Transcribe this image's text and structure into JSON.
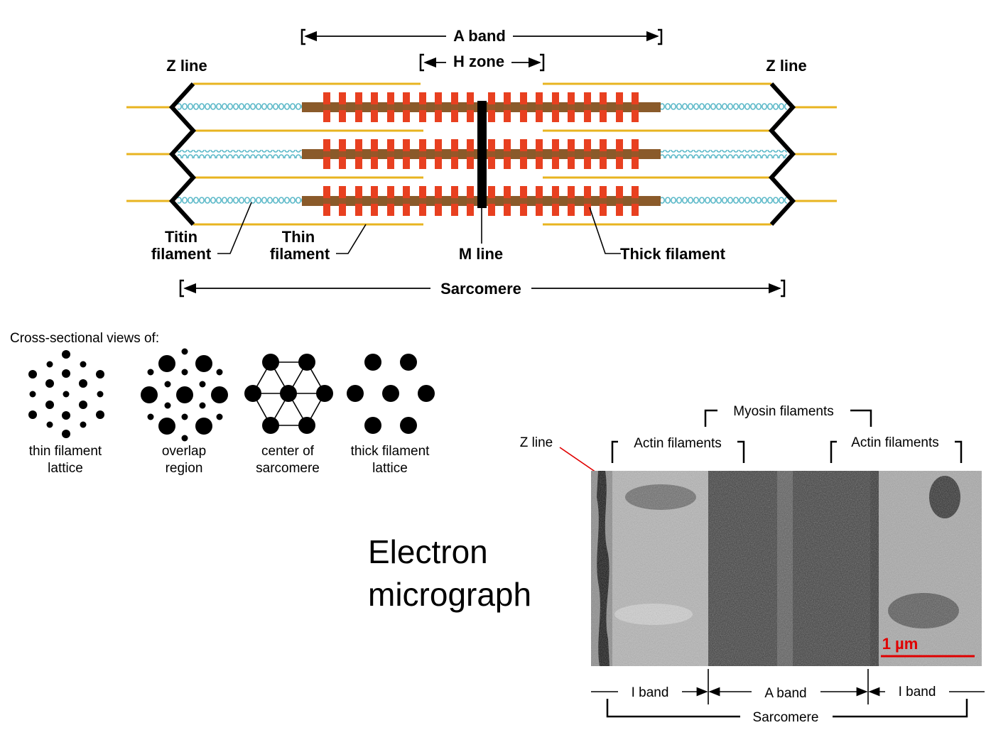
{
  "sarcomere_diagram": {
    "a_band_label": "A band",
    "h_zone_label": "H zone",
    "z_line_left_label": "Z line",
    "z_line_right_label": "Z line",
    "titin_label_line1": "Titin",
    "titin_label_line2": "filament",
    "thin_label_line1": "Thin",
    "thin_label_line2": "filament",
    "m_line_label": "M line",
    "thick_label": "Thick filament",
    "sarcomere_label": "Sarcomere",
    "colors": {
      "thin_filament": "#e8b420",
      "titin": "#5ab8c8",
      "thick_filament": "#8a5a2a",
      "myosin_heads": "#e84020",
      "z_line": "#000000",
      "m_line": "#000000"
    }
  },
  "cross_sections": {
    "heading": "Cross-sectional views of:",
    "views": [
      {
        "line1": "thin filament",
        "line2": "lattice"
      },
      {
        "line1": "overlap",
        "line2": "region"
      },
      {
        "line1": "center of",
        "line2": "sarcomere"
      },
      {
        "line1": "thick filament",
        "line2": "lattice"
      }
    ]
  },
  "micrograph": {
    "title_line1": "Electron",
    "title_line2": "micrograph",
    "z_line_label": "Z line",
    "myosin_label": "Myosin filaments",
    "actin_left_label": "Actin filaments",
    "actin_right_label": "Actin filaments",
    "scale_label": "1 µm",
    "i_band_left_label": "I band",
    "a_band_label": "A band",
    "i_band_right_label": "I band",
    "sarcomere_label": "Sarcomere",
    "colors": {
      "arrow": "#e00000",
      "scale_bar": "#e00000"
    }
  }
}
